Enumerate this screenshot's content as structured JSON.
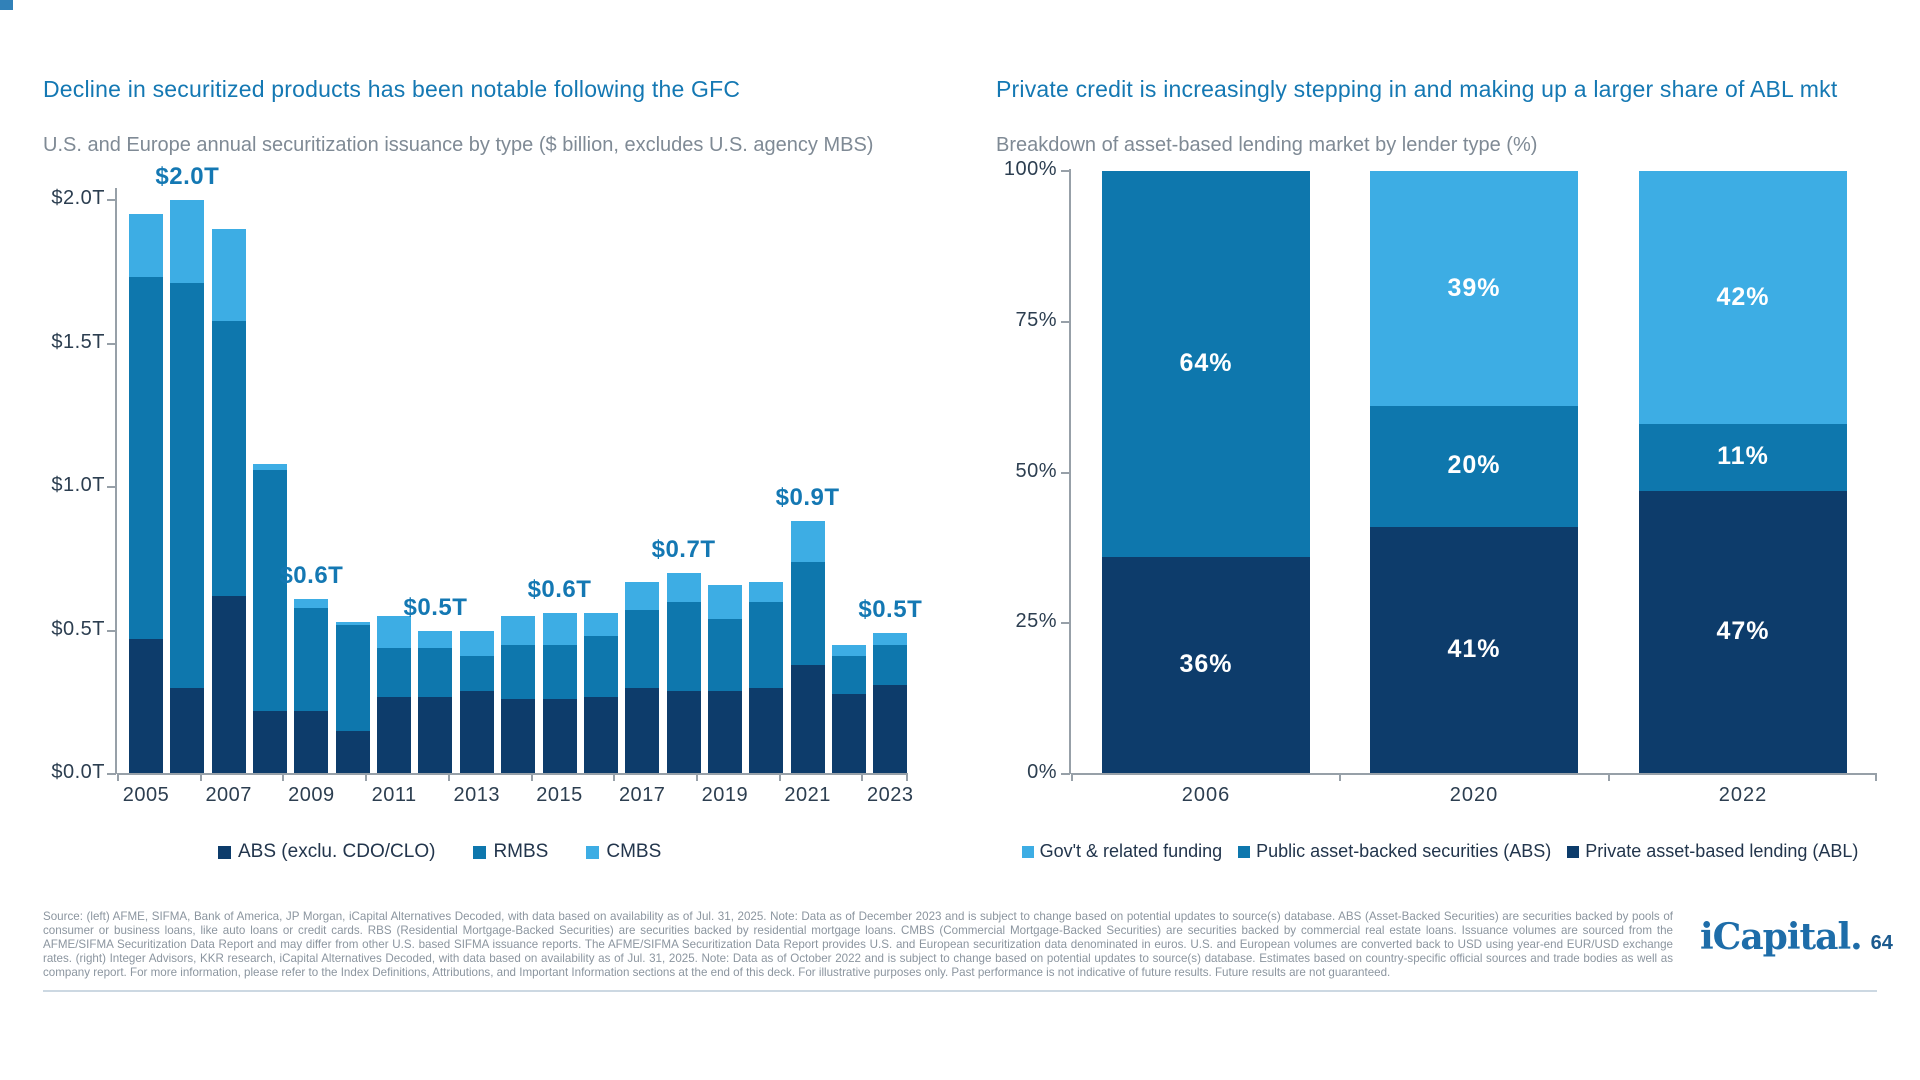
{
  "page": {
    "brand": "iCapital.",
    "page_number": "64"
  },
  "colors": {
    "navy": "#0d3c6b",
    "medium_blue": "#0e77ad",
    "light_blue": "#3dade4",
    "title_blue": "#1478b3",
    "subtitle_gray": "#7f8a95",
    "tick_text": "#2c3e50",
    "axis_gray": "#97a0a8",
    "callout_blue": "#1478b3",
    "footer_gray": "#8b959f",
    "rule": "#ccd8e2"
  },
  "chart_data": [
    {
      "type": "bar",
      "stacked": true,
      "title": "Decline in securitized products has been notable following the GFC",
      "subtitle": "U.S. and Europe annual securitization issuance by type ($ billion, excludes U.S. agency MBS)",
      "unit": "$ trillions",
      "categories": [
        2005,
        2006,
        2007,
        2008,
        2009,
        2010,
        2011,
        2012,
        2013,
        2014,
        2015,
        2016,
        2017,
        2018,
        2019,
        2020,
        2021,
        2022,
        2023
      ],
      "series": [
        {
          "name": "ABS (exclu. CDO/CLO)",
          "color": "#0d3c6b",
          "values": [
            0.47,
            0.3,
            0.62,
            0.22,
            0.22,
            0.15,
            0.27,
            0.27,
            0.29,
            0.26,
            0.26,
            0.27,
            0.3,
            0.29,
            0.29,
            0.3,
            0.38,
            0.28,
            0.31
          ]
        },
        {
          "name": "RMBS",
          "color": "#0e77ad",
          "values": [
            1.26,
            1.41,
            0.96,
            0.84,
            0.36,
            0.37,
            0.17,
            0.17,
            0.12,
            0.19,
            0.19,
            0.21,
            0.27,
            0.31,
            0.25,
            0.3,
            0.36,
            0.13,
            0.14
          ]
        },
        {
          "name": "CMBS",
          "color": "#3dade4",
          "values": [
            0.22,
            0.29,
            0.32,
            0.02,
            0.03,
            0.01,
            0.11,
            0.06,
            0.09,
            0.1,
            0.11,
            0.08,
            0.1,
            0.1,
            0.12,
            0.07,
            0.14,
            0.04,
            0.04
          ]
        }
      ],
      "callouts": [
        {
          "year": 2006,
          "label": "$2.0T"
        },
        {
          "year": 2009,
          "label": "$0.6T"
        },
        {
          "year": 2012,
          "label": "$0.5T"
        },
        {
          "year": 2015,
          "label": "$0.6T"
        },
        {
          "year": 2018,
          "label": "$0.7T"
        },
        {
          "year": 2021,
          "label": "$0.9T"
        },
        {
          "year": 2023,
          "label": "$0.5T"
        }
      ],
      "y_ticks": {
        "values": [
          2.0,
          1.5,
          1.0,
          0.5,
          0.0
        ],
        "labels": [
          "$2.0T",
          "$1.5T",
          "$1.0T",
          "$0.5T",
          "$0.0T"
        ]
      },
      "x_tick_labels": [
        "2005",
        "2007",
        "2009",
        "2011",
        "2013",
        "2015",
        "2017",
        "2019",
        "2021",
        "2023"
      ],
      "ylim": [
        0,
        2.15
      ],
      "grid": false,
      "legend_position": "bottom",
      "legend": [
        {
          "label": "ABS (exclu. CDO/CLO)",
          "color": "#0d3c6b"
        },
        {
          "label": "RMBS",
          "color": "#0e77ad"
        },
        {
          "label": "CMBS",
          "color": "#3dade4"
        }
      ]
    },
    {
      "type": "bar",
      "stacked": true,
      "percent": true,
      "title": "Private credit is increasingly stepping in and making up a larger share of ABL mkt",
      "subtitle": "Breakdown of asset-based lending market by lender type (%)",
      "categories": [
        "2006",
        "2020",
        "2022"
      ],
      "series": [
        {
          "name": "Private asset-based lending (ABL)",
          "color": "#0d3c6b",
          "values": [
            36,
            41,
            47
          ]
        },
        {
          "name": "Public asset-backed securities (ABS)",
          "color": "#0e77ad",
          "values": [
            64,
            20,
            11
          ]
        },
        {
          "name": "Gov't & related funding",
          "color": "#3dade4",
          "values": [
            0,
            39,
            42
          ]
        }
      ],
      "data_labels": [
        [
          "36%",
          "41%",
          "47%"
        ],
        [
          "64%",
          "20%",
          "11%"
        ],
        [
          "",
          "39%",
          "42%"
        ]
      ],
      "y_ticks": {
        "values": [
          0,
          25,
          50,
          75,
          100
        ],
        "labels": [
          "0%",
          "25%",
          "50%",
          "75%",
          "100%"
        ]
      },
      "ylim": [
        0,
        100
      ],
      "grid": false,
      "legend_position": "bottom",
      "legend": [
        {
          "label": "Gov't & related funding",
          "color": "#3dade4"
        },
        {
          "label": "Public asset-backed securities (ABS)",
          "color": "#0e77ad"
        },
        {
          "label": "Private asset-based lending (ABL)",
          "color": "#0d3c6b"
        }
      ]
    }
  ],
  "footer": {
    "text": "Source: (left) AFME, SIFMA, Bank of America, JP Morgan, iCapital Alternatives Decoded, with data based on availability as of Jul. 31, 2025. Note: Data as of December 2023 and is subject to change based on potential updates to source(s) database. ABS (Asset-Backed Securities) are securities backed by pools of consumer or business loans, like auto loans or credit cards. RBS (Residential Mortgage-Backed Securities) are securities backed by residential mortgage loans. CMBS (Commercial Mortgage-Backed Securities) are securities backed by commercial real estate loans. Issuance volumes are sourced from the AFME/SIFMA Securitization Data Report and may differ from other U.S. based SIFMA issuance reports. The AFME/SIFMA Securitization Data Report provides U.S. and European securitization data denominated in euros. U.S. and European volumes are converted back to USD using year-end EUR/USD exchange rates. (right) Integer Advisors, KKR research, iCapital Alternatives Decoded, with data based on availability as of Jul. 31, 2025. Note: Data as of October 2022 and is subject to change based on potential updates to source(s) database. Estimates based on country-specific official sources and trade bodies as well as company report. For more information, please refer to the Index Definitions, Attributions, and Important Information sections at the end of this deck. For illustrative purposes only. Past performance is not indicative of future results. Future results are not guaranteed."
  }
}
